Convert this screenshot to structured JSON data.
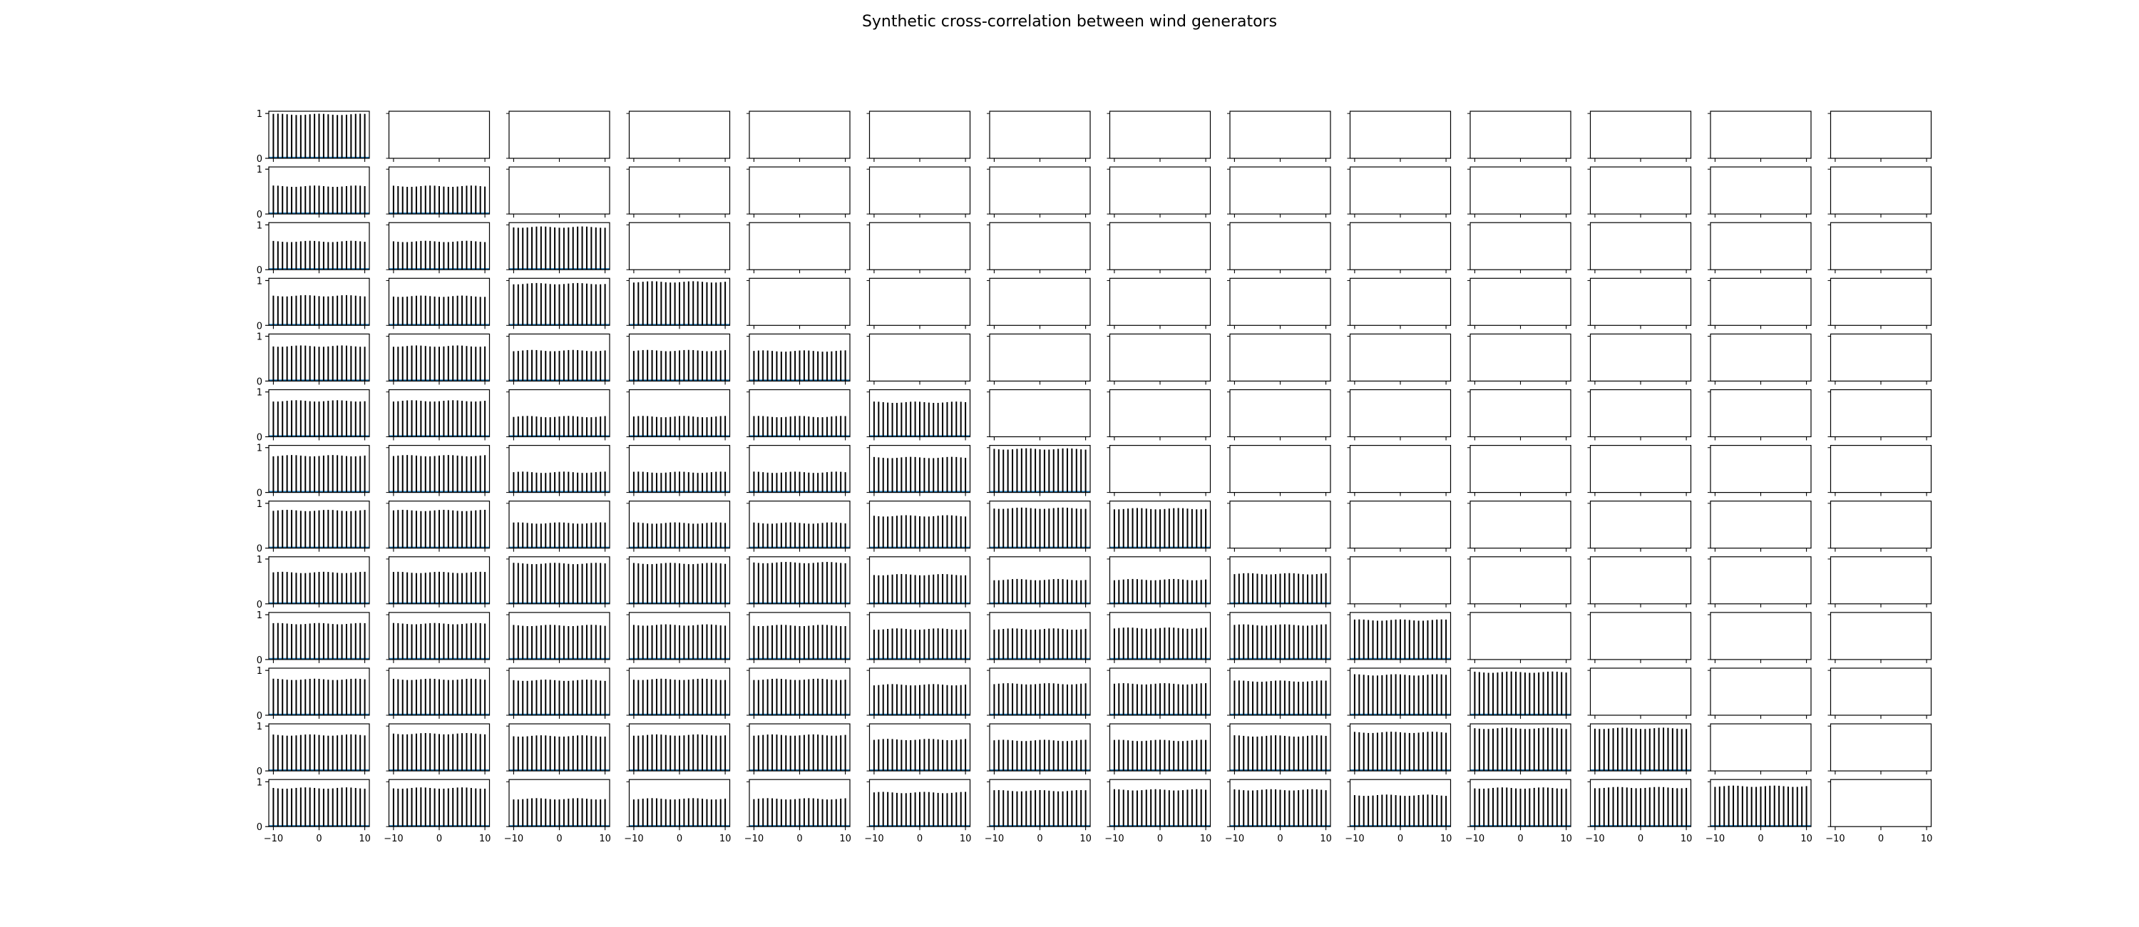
{
  "figure": {
    "title": "Synthetic cross-correlation between wind generators"
  },
  "colors": {
    "bar": "#000000",
    "baseline": "#1f77b4",
    "axes": "#000000"
  },
  "chart_data": {
    "type": "bar",
    "layout": "lower-triangular grid of subplots (13 rows x 14 columns)",
    "rows": 13,
    "cols": 14,
    "title": "Synthetic cross-correlation between wind generators",
    "xlabel": "",
    "ylabel": "",
    "xlim": [
      -11,
      11
    ],
    "ylim": [
      0,
      1.05
    ],
    "xticks": [
      -10,
      0,
      10
    ],
    "yticks": [
      0,
      1
    ],
    "lags": [
      -10,
      -9,
      -8,
      -7,
      -6,
      -5,
      -4,
      -3,
      -2,
      -1,
      0,
      1,
      2,
      3,
      4,
      5,
      6,
      7,
      8,
      9,
      10
    ],
    "grid": false,
    "legend": "none",
    "values_note": "Approximate constant bar height across lags for panel [row][col]; null = empty panel.",
    "values": [
      [
        0.98,
        null,
        null,
        null,
        null,
        null,
        null,
        null,
        null,
        null,
        null,
        null,
        null,
        null
      ],
      [
        0.62,
        0.62,
        null,
        null,
        null,
        null,
        null,
        null,
        null,
        null,
        null,
        null,
        null,
        null
      ],
      [
        0.63,
        0.63,
        0.95,
        null,
        null,
        null,
        null,
        null,
        null,
        null,
        null,
        null,
        null,
        null
      ],
      [
        0.66,
        0.65,
        0.93,
        0.97,
        null,
        null,
        null,
        null,
        null,
        null,
        null,
        null,
        null,
        null
      ],
      [
        0.78,
        0.78,
        0.68,
        0.68,
        0.67,
        null,
        null,
        null,
        null,
        null,
        null,
        null,
        null,
        null
      ],
      [
        0.8,
        0.8,
        0.45,
        0.45,
        0.45,
        0.77,
        null,
        null,
        null,
        null,
        null,
        null,
        null,
        null
      ],
      [
        0.82,
        0.82,
        0.45,
        0.45,
        0.45,
        0.78,
        0.97,
        null,
        null,
        null,
        null,
        null,
        null,
        null
      ],
      [
        0.84,
        0.84,
        0.56,
        0.56,
        0.56,
        0.72,
        0.89,
        0.88,
        null,
        null,
        null,
        null,
        null,
        null
      ],
      [
        0.7,
        0.7,
        0.9,
        0.9,
        0.92,
        0.65,
        0.54,
        0.54,
        0.67,
        null,
        null,
        null,
        null,
        null
      ],
      [
        0.8,
        0.8,
        0.76,
        0.77,
        0.76,
        0.68,
        0.68,
        0.7,
        0.77,
        0.88,
        null,
        null,
        null,
        null
      ],
      [
        0.8,
        0.8,
        0.78,
        0.8,
        0.8,
        0.68,
        0.7,
        0.7,
        0.76,
        0.9,
        0.96,
        null,
        null,
        null
      ],
      [
        0.8,
        0.83,
        0.78,
        0.8,
        0.8,
        0.7,
        0.68,
        0.68,
        0.78,
        0.86,
        0.95,
        0.95,
        null,
        null
      ],
      [
        0.86,
        0.86,
        0.62,
        0.62,
        0.62,
        0.76,
        0.8,
        0.82,
        0.82,
        0.7,
        0.86,
        0.87,
        0.9,
        null
      ]
    ]
  }
}
